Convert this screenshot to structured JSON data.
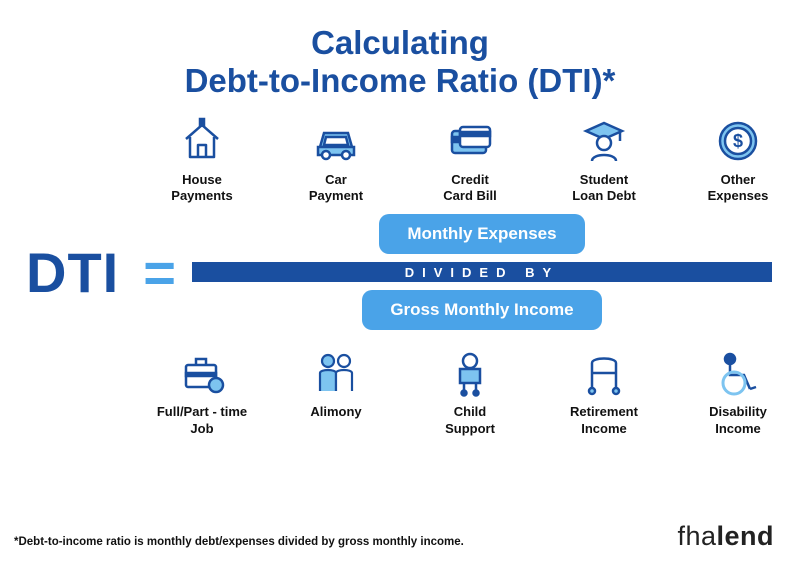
{
  "title_line1": "Calculating",
  "title_line2": "Debt-to-Income Ratio (DTI)*",
  "colors": {
    "primary": "#1a4fa0",
    "accent": "#4aa3e8",
    "icon_light": "#7dc4f0",
    "text": "#111111",
    "background": "#ffffff"
  },
  "dti_label": "DTI",
  "equals": "=",
  "numerator_pill": "Monthly Expenses",
  "divider_text": "DIVIDED BY",
  "denominator_pill": "Gross Monthly Income",
  "expenses": [
    {
      "label": "House\nPayments",
      "icon": "house-icon"
    },
    {
      "label": "Car\nPayment",
      "icon": "car-icon"
    },
    {
      "label": "Credit\nCard Bill",
      "icon": "credit-card-icon"
    },
    {
      "label": "Student\nLoan Debt",
      "icon": "student-icon"
    },
    {
      "label": "Other\nExpenses",
      "icon": "coin-icon"
    }
  ],
  "income": [
    {
      "label": "Full/Part - time\nJob",
      "icon": "briefcase-icon"
    },
    {
      "label": "Alimony",
      "icon": "people-icon"
    },
    {
      "label": "Child\nSupport",
      "icon": "child-icon"
    },
    {
      "label": "Retirement\nIncome",
      "icon": "walker-icon"
    },
    {
      "label": "Disability\nIncome",
      "icon": "wheelchair-icon"
    }
  ],
  "footnote": "*Debt-to-income ratio is monthly debt/expenses divided by gross monthly income.",
  "brand_light": "fha",
  "brand_bold": "lend"
}
